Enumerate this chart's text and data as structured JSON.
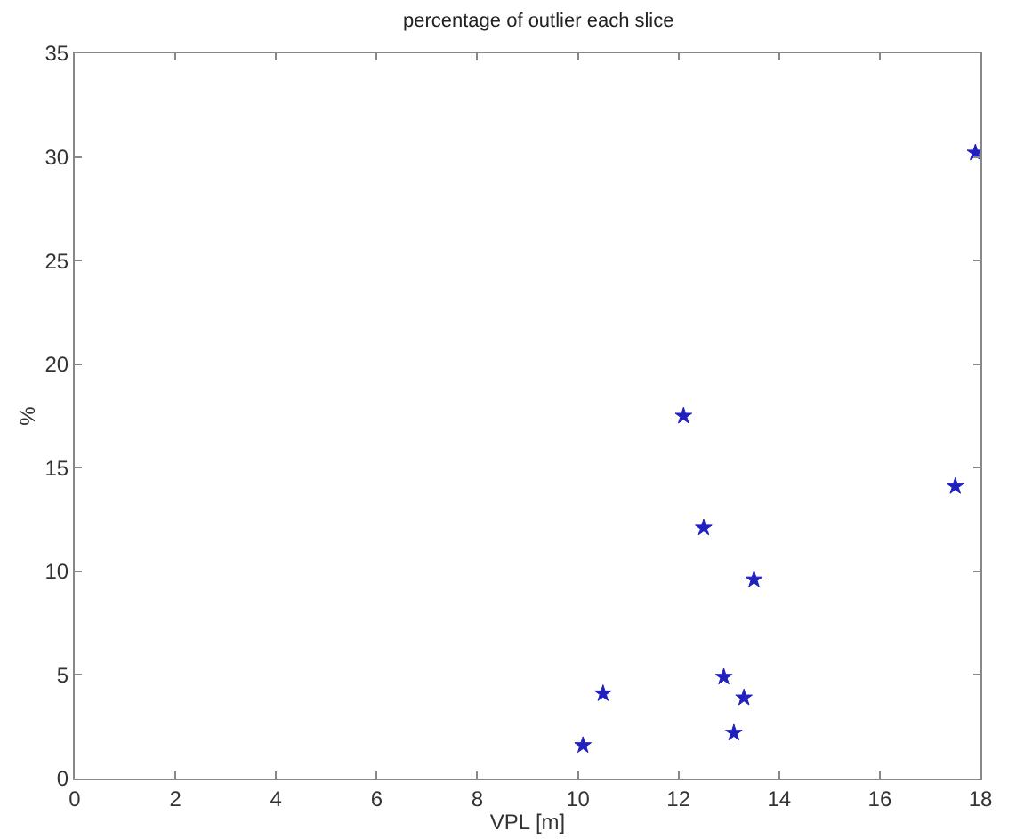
{
  "chart_data": {
    "type": "scatter",
    "title": "percentage of outlier each slice",
    "xlabel": "VPL [m]",
    "ylabel": "%",
    "x": [
      10.1,
      10.5,
      12.1,
      12.5,
      12.9,
      13.3,
      13.1,
      13.5,
      17.5,
      17.9
    ],
    "values": [
      1.6,
      4.1,
      17.5,
      12.1,
      4.9,
      3.9,
      2.2,
      9.6,
      14.1,
      30.2
    ],
    "color": "#2020c0",
    "marker": "star",
    "xlim": [
      0,
      18
    ],
    "xticks": [
      0,
      2,
      4,
      6,
      8,
      10,
      12,
      14,
      16,
      18
    ],
    "ylim": [
      0,
      35
    ],
    "yticks": [
      0,
      5,
      10,
      15,
      20,
      25,
      30,
      35
    ],
    "grid": false
  }
}
